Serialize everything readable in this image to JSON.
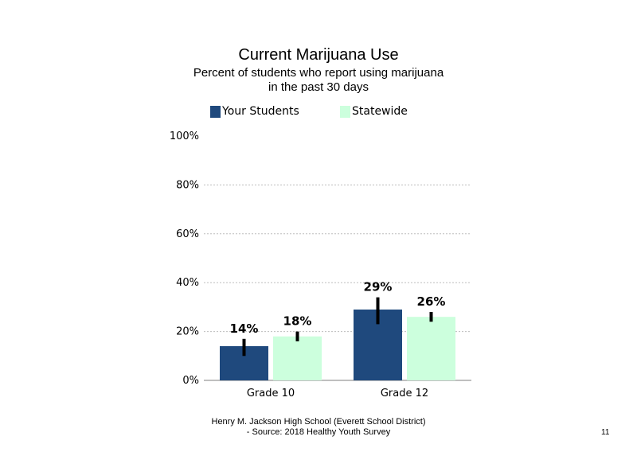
{
  "chart_data": {
    "type": "bar",
    "title": "Current Marijuana Use",
    "subtitle_lines": [
      "Percent of students who report using marijuana",
      "in the past 30 days"
    ],
    "categories": [
      "Grade 10",
      "Grade 12"
    ],
    "series": [
      {
        "name": "Your Students",
        "values": [
          14,
          29
        ],
        "labels": [
          "14%",
          "29%"
        ],
        "error_low": [
          10,
          23
        ],
        "error_high": [
          17,
          34
        ],
        "color": "#1f497d"
      },
      {
        "name": "Statewide",
        "values": [
          18,
          26
        ],
        "labels": [
          "18%",
          "26%"
        ],
        "error_low": [
          16,
          24
        ],
        "error_high": [
          20,
          28
        ],
        "color": "#ccffdd"
      }
    ],
    "ylim": [
      0,
      100
    ],
    "yticks": [
      0,
      20,
      40,
      60,
      80,
      100
    ],
    "ytick_labels": [
      "0%",
      "20%",
      "40%",
      "60%",
      "80%",
      "100%"
    ],
    "grid": true,
    "legend_position": "top"
  },
  "footer": {
    "line1": "Henry M. Jackson High School (Everett School District)",
    "line2": "- Source: 2018 Healthy Youth Survey"
  },
  "page_number": "11"
}
